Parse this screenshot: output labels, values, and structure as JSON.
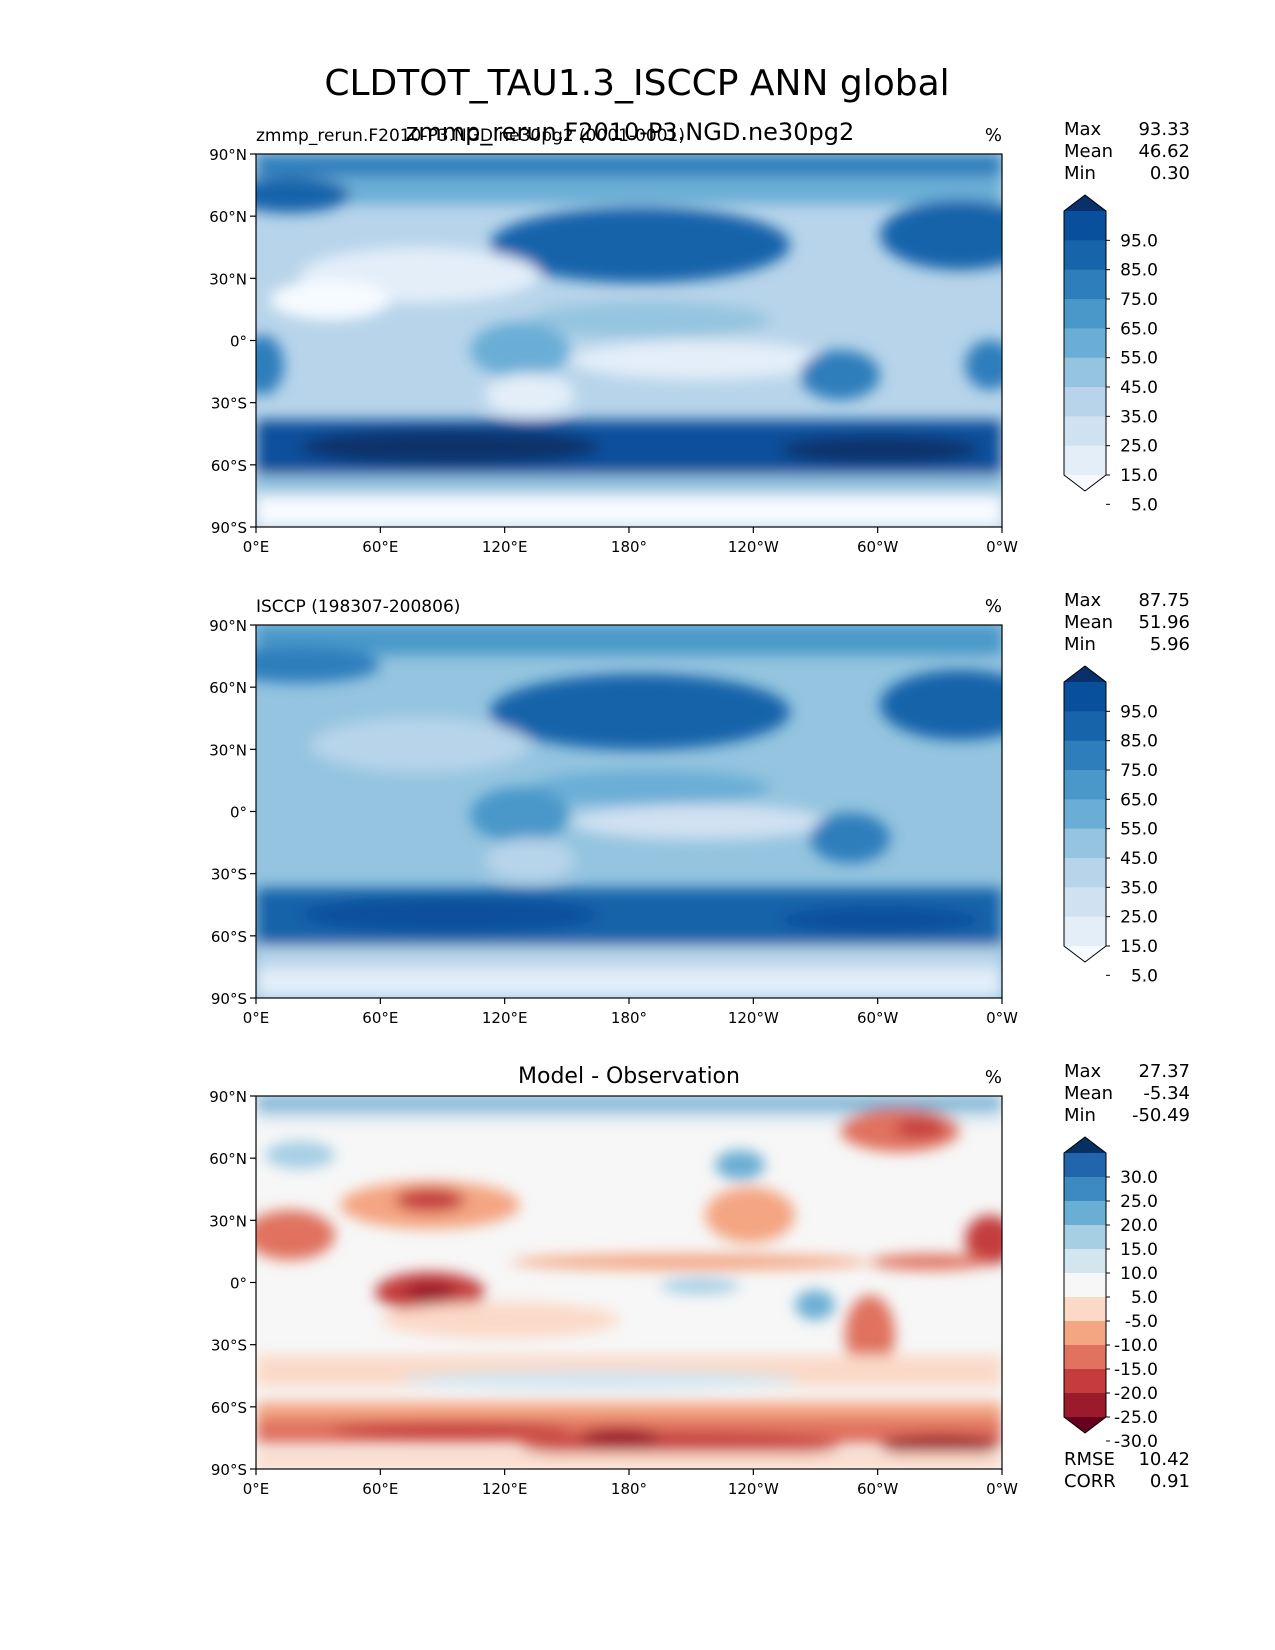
{
  "figure": {
    "title": "CLDTOT_TAU1.3_ISCCP ANN global",
    "overlay_title": "zmmp_rerun.F2010-P3.NGD.ne30pg2"
  },
  "axes": {
    "lat_ticks": [
      "90°N",
      "60°N",
      "30°N",
      "0°",
      "30°S",
      "60°S",
      "90°S"
    ],
    "lon_ticks": [
      "0°E",
      "60°E",
      "120°E",
      "180°",
      "120°W",
      "60°W",
      "0°W"
    ]
  },
  "panels": [
    {
      "id": "test",
      "left_title": "zmmp_rerun.F2010-P3.NGD.ne30pg2 (0001-0001)",
      "center_title": "",
      "units": "%",
      "stats": [
        {
          "label": "Max",
          "value": "93.33"
        },
        {
          "label": "Mean",
          "value": "46.62"
        },
        {
          "label": "Min",
          "value": "0.30"
        }
      ],
      "colorbar": {
        "labels": [
          "95.0",
          "85.0",
          "75.0",
          "65.0",
          "55.0",
          "45.0",
          "35.0",
          "25.0",
          "15.0",
          "5.0"
        ],
        "colors": [
          "#08306b",
          "#08509b",
          "#1864aa",
          "#2e7ebc",
          "#4a98c9",
          "#6aaed6",
          "#94c4df",
          "#b7d4ea",
          "#d0e1f2",
          "#e3eef9",
          "#f7fbff"
        ]
      },
      "extra_stats": []
    },
    {
      "id": "reference",
      "left_title": "ISCCP (198307-200806)",
      "center_title": "",
      "units": "%",
      "stats": [
        {
          "label": "Max",
          "value": "87.75"
        },
        {
          "label": "Mean",
          "value": "51.96"
        },
        {
          "label": "Min",
          "value": "5.96"
        }
      ],
      "colorbar": {
        "labels": [
          "95.0",
          "85.0",
          "75.0",
          "65.0",
          "55.0",
          "45.0",
          "35.0",
          "25.0",
          "15.0",
          "5.0"
        ],
        "colors": [
          "#08306b",
          "#08509b",
          "#1864aa",
          "#2e7ebc",
          "#4a98c9",
          "#6aaed6",
          "#94c4df",
          "#b7d4ea",
          "#d0e1f2",
          "#e3eef9",
          "#f7fbff"
        ]
      },
      "extra_stats": []
    },
    {
      "id": "difference",
      "left_title": "",
      "center_title": "Model - Observation",
      "units": "%",
      "stats": [
        {
          "label": "Max",
          "value": "27.37"
        },
        {
          "label": "Mean",
          "value": "-5.34"
        },
        {
          "label": "Min",
          "value": "-50.49"
        }
      ],
      "colorbar": {
        "labels": [
          "30.0",
          "25.0",
          "20.0",
          "15.0",
          "10.0",
          "5.0",
          "-5.0",
          "-10.0",
          "-15.0",
          "-20.0",
          "-25.0",
          "-30.0"
        ],
        "colors": [
          "#053061",
          "#2166ac",
          "#3d8ac0",
          "#6aaed3",
          "#a6cfe4",
          "#d3e6f0",
          "#f7f7f7",
          "#fbd9c7",
          "#f4a582",
          "#e0725f",
          "#c43c3c",
          "#9b1a2b",
          "#67001f"
        ]
      },
      "extra_stats": [
        {
          "label": "RMSE",
          "value": "10.42"
        },
        {
          "label": "CORR",
          "value": "0.91"
        }
      ]
    }
  ]
}
